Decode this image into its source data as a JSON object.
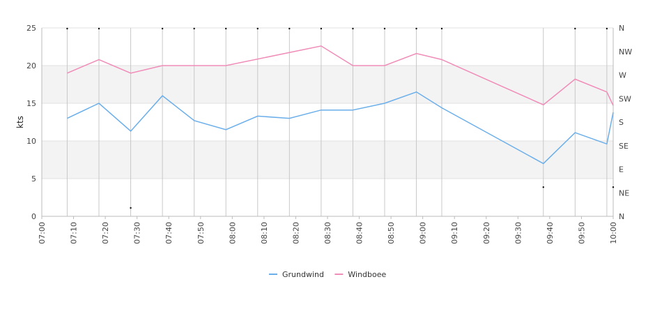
{
  "chart_data": {
    "type": "line",
    "ylabel": "kts",
    "ylim": [
      0,
      25
    ],
    "yticks": [
      "0",
      "5",
      "10",
      "15",
      "20",
      "25"
    ],
    "direction_labels": [
      "N",
      "NE",
      "E",
      "SE",
      "S",
      "SW",
      "W",
      "NW",
      "N"
    ],
    "x_range": [
      "07:00",
      "10:00"
    ],
    "x_ticks": [
      "07:00",
      "07:10",
      "07:20",
      "07:30",
      "07:40",
      "07:50",
      "08:00",
      "08:10",
      "08:20",
      "08:30",
      "08:40",
      "08:50",
      "09:00",
      "09:10",
      "09:20",
      "09:30",
      "09:40",
      "09:50",
      "10:00"
    ],
    "grid": true,
    "legend_position": "bottom-center",
    "series": [
      {
        "name": "Grundwind",
        "color": "#6aaeea",
        "points": [
          {
            "t": "07:08",
            "v": 13.0
          },
          {
            "t": "07:18",
            "v": 15.0
          },
          {
            "t": "07:28",
            "v": 11.3
          },
          {
            "t": "07:38",
            "v": 16.0
          },
          {
            "t": "07:48",
            "v": 12.7
          },
          {
            "t": "07:58",
            "v": 11.5
          },
          {
            "t": "08:08",
            "v": 13.3
          },
          {
            "t": "08:18",
            "v": 13.0
          },
          {
            "t": "08:28",
            "v": 14.1
          },
          {
            "t": "08:38",
            "v": 14.1
          },
          {
            "t": "08:48",
            "v": 15.0
          },
          {
            "t": "08:58",
            "v": 16.5
          },
          {
            "t": "09:06",
            "v": 14.4
          },
          {
            "t": "09:38",
            "v": 7.0
          },
          {
            "t": "09:48",
            "v": 11.1
          },
          {
            "t": "09:58",
            "v": 9.6
          },
          {
            "t": "10:00",
            "v": 13.8
          }
        ]
      },
      {
        "name": "Windboee",
        "color": "#f08cb8",
        "points": [
          {
            "t": "07:08",
            "v": 19.0
          },
          {
            "t": "07:18",
            "v": 20.8
          },
          {
            "t": "07:28",
            "v": 19.0
          },
          {
            "t": "07:38",
            "v": 20.0
          },
          {
            "t": "07:48",
            "v": 20.0
          },
          {
            "t": "07:58",
            "v": 20.0
          },
          {
            "t": "08:28",
            "v": 22.6
          },
          {
            "t": "08:38",
            "v": 20.0
          },
          {
            "t": "08:48",
            "v": 20.0
          },
          {
            "t": "08:58",
            "v": 21.6
          },
          {
            "t": "09:06",
            "v": 20.8
          },
          {
            "t": "09:38",
            "v": 14.8
          },
          {
            "t": "09:48",
            "v": 18.2
          },
          {
            "t": "09:58",
            "v": 16.5
          },
          {
            "t": "10:00",
            "v": 14.7
          }
        ]
      }
    ],
    "direction_points": [
      {
        "t": "07:08",
        "dir": "N"
      },
      {
        "t": "07:18",
        "dir": "N"
      },
      {
        "t": "07:28",
        "dir": "NNE"
      },
      {
        "t": "07:38",
        "dir": "N"
      },
      {
        "t": "07:48",
        "dir": "N"
      },
      {
        "t": "07:58",
        "dir": "N"
      },
      {
        "t": "08:08",
        "dir": "N"
      },
      {
        "t": "08:18",
        "dir": "N"
      },
      {
        "t": "08:28",
        "dir": "N"
      },
      {
        "t": "08:38",
        "dir": "N"
      },
      {
        "t": "08:48",
        "dir": "N"
      },
      {
        "t": "08:58",
        "dir": "N"
      },
      {
        "t": "09:06",
        "dir": "N"
      },
      {
        "t": "09:38",
        "dir": "NE"
      },
      {
        "t": "09:48",
        "dir": "N"
      },
      {
        "t": "09:58",
        "dir": "N"
      },
      {
        "t": "10:00",
        "dir": "NE"
      }
    ]
  }
}
